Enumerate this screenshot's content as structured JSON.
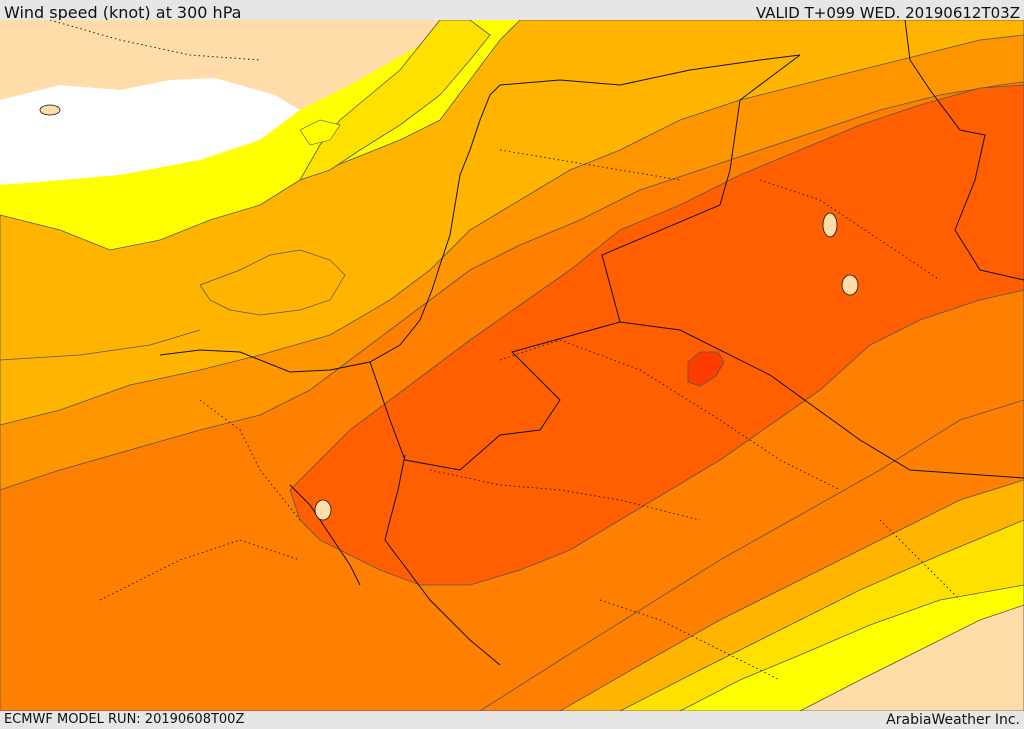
{
  "header": {
    "title": "Wind speed (knot) at 300 hPa",
    "valid": "VALID T+099 WED. 20190612T03Z"
  },
  "footer": {
    "model_run": "ECMWF MODEL RUN: 20190608T00Z",
    "credit": "ArabiaWeather Inc."
  },
  "colors": {
    "land_base": "#ffdca8",
    "white_low": "#ffffff",
    "band_yellow_light": "#ffff00",
    "band_yellow": "#ffe100",
    "band_gold": "#ffb400",
    "band_orange_light": "#ff9600",
    "band_orange": "#ff7f00",
    "band_orange_dark": "#ff5f00",
    "band_red": "#ff3c00",
    "contour_line": "#555555",
    "border_line": "#111111"
  }
}
